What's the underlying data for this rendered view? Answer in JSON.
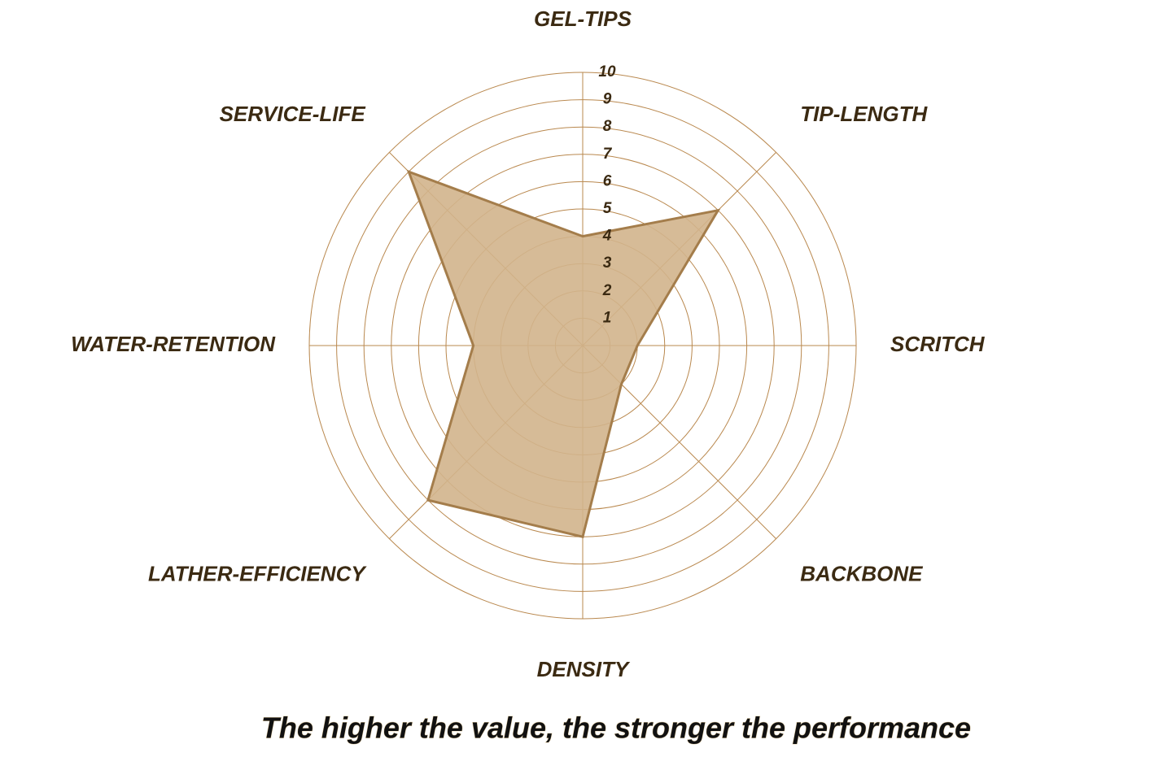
{
  "chart_data": {
    "type": "radar",
    "subtitle": "The higher the value, the stronger the performance",
    "categories": [
      "GEL-TIPS",
      "TIP-LENGTH",
      "SCRITCH",
      "BACKBONE",
      "DENSITY",
      "LATHER-EFFICIENCY",
      "WATER-RETENTION",
      "SERVICE-LIFE"
    ],
    "values": [
      4,
      7,
      2,
      2,
      7,
      8,
      4,
      9
    ],
    "ylim": [
      0,
      10
    ],
    "yticks": [
      1,
      2,
      3,
      4,
      5,
      6,
      7,
      8,
      9,
      10
    ],
    "color": "#a47d4b",
    "fill": "#d2b48c",
    "grid_color": "#b9884e",
    "grid": true
  }
}
